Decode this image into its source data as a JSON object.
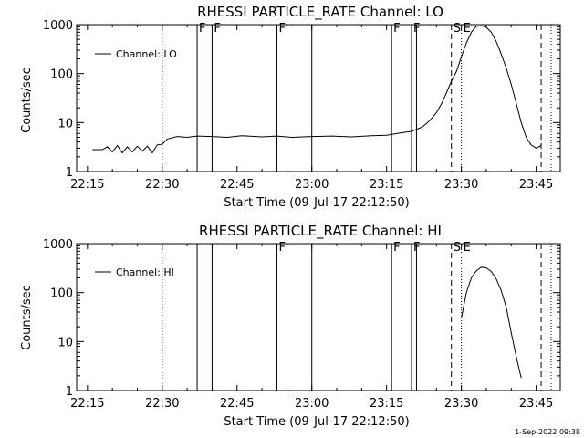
{
  "footer": {
    "timestamp": "1-Sep-2022 09:38"
  },
  "chart_data": [
    {
      "type": "line",
      "title": "RHESSI PARTICLE_RATE Channel: LO",
      "xlabel": "Start Time (09-Jul-17 22:12:50)",
      "ylabel": "Counts/sec",
      "yscale": "log",
      "xlim": [
        "22:12:50",
        "23:49:50"
      ],
      "ylim": [
        1,
        1000
      ],
      "xticks": [
        "22:15",
        "22:30",
        "22:45",
        "23:00",
        "23:15",
        "23:30",
        "23:45"
      ],
      "yticks": [
        "1",
        "10",
        "100",
        "1000"
      ],
      "legend": {
        "position": "top-left",
        "label": "Channel: LO"
      },
      "markers": [
        {
          "time": "22:30",
          "style": "dotted",
          "label": ""
        },
        {
          "time": "22:37",
          "style": "solid",
          "label": "F"
        },
        {
          "time": "22:40",
          "style": "solid",
          "label": "F"
        },
        {
          "time": "22:53",
          "style": "solid",
          "label": "F"
        },
        {
          "time": "23:00",
          "style": "solid",
          "label": ""
        },
        {
          "time": "23:16",
          "style": "solid",
          "label": "F"
        },
        {
          "time": "23:20",
          "style": "solid",
          "label": "F"
        },
        {
          "time": "23:21",
          "style": "solid",
          "label": ""
        },
        {
          "time": "23:28",
          "style": "dashed",
          "label": "S"
        },
        {
          "time": "23:30",
          "style": "dotted",
          "label": "E"
        },
        {
          "time": "23:46",
          "style": "dashed",
          "label": ""
        },
        {
          "time": "23:48",
          "style": "dotted",
          "label": ""
        }
      ],
      "series": [
        {
          "name": "Channel: LO",
          "x": [
            "22:16",
            "22:18",
            "22:19",
            "22:20",
            "22:21",
            "22:22",
            "22:23",
            "22:24",
            "22:25",
            "22:26",
            "22:27",
            "22:28",
            "22:29",
            "22:30",
            "22:31",
            "22:33",
            "22:35",
            "22:37",
            "22:40",
            "22:43",
            "22:46",
            "22:50",
            "22:53",
            "22:56",
            "23:00",
            "23:04",
            "23:08",
            "23:12",
            "23:15",
            "23:18",
            "23:20",
            "23:22",
            "23:23",
            "23:24",
            "23:25",
            "23:26",
            "23:27",
            "23:28",
            "23:29",
            "23:30",
            "23:31",
            "23:32",
            "23:33",
            "23:34",
            "23:35",
            "23:36",
            "23:37",
            "23:38",
            "23:39",
            "23:40",
            "23:41",
            "23:42",
            "23:43",
            "23:44",
            "23:45",
            "23:46"
          ],
          "y": [
            2.8,
            2.8,
            3.2,
            2.5,
            3.4,
            2.4,
            3.2,
            2.5,
            3.3,
            2.6,
            3.3,
            2.4,
            3.5,
            3.6,
            4.6,
            5.2,
            5.0,
            5.3,
            5.2,
            5.0,
            5.4,
            5.1,
            5.3,
            5.0,
            5.2,
            5.3,
            5.1,
            5.4,
            5.5,
            6.2,
            6.6,
            8.0,
            9.5,
            12,
            16,
            24,
            40,
            70,
            110,
            220,
            420,
            700,
            920,
            950,
            880,
            700,
            450,
            250,
            130,
            60,
            25,
            10,
            5,
            3.5,
            3.0,
            3.4
          ]
        }
      ]
    },
    {
      "type": "line",
      "title": "RHESSI PARTICLE_RATE Channel: HI",
      "xlabel": "Start Time (09-Jul-17 22:12:50)",
      "ylabel": "Counts/sec",
      "yscale": "log",
      "xlim": [
        "22:12:50",
        "23:49:50"
      ],
      "ylim": [
        1,
        1000
      ],
      "xticks": [
        "22:15",
        "22:30",
        "22:45",
        "23:00",
        "23:15",
        "23:30",
        "23:45"
      ],
      "yticks": [
        "1",
        "10",
        "100",
        "1000"
      ],
      "legend": {
        "position": "top-left",
        "label": "Channel: HI"
      },
      "markers": [
        {
          "time": "22:30",
          "style": "dotted",
          "label": ""
        },
        {
          "time": "22:37",
          "style": "solid",
          "label": ""
        },
        {
          "time": "22:40",
          "style": "solid",
          "label": ""
        },
        {
          "time": "22:53",
          "style": "solid",
          "label": "F"
        },
        {
          "time": "23:00",
          "style": "solid",
          "label": ""
        },
        {
          "time": "23:16",
          "style": "solid",
          "label": "F"
        },
        {
          "time": "23:20",
          "style": "solid",
          "label": "F"
        },
        {
          "time": "23:21",
          "style": "solid",
          "label": ""
        },
        {
          "time": "23:28",
          "style": "dashed",
          "label": "S"
        },
        {
          "time": "23:30",
          "style": "dotted",
          "label": "E"
        },
        {
          "time": "23:46",
          "style": "dashed",
          "label": ""
        },
        {
          "time": "23:48",
          "style": "dotted",
          "label": ""
        }
      ],
      "series": [
        {
          "name": "Channel: HI",
          "x": [
            "23:30",
            "23:31",
            "23:32",
            "23:33",
            "23:34",
            "23:35",
            "23:36",
            "23:37",
            "23:38",
            "23:39",
            "23:40",
            "23:41",
            "23:42"
          ],
          "y": [
            30,
            100,
            200,
            280,
            330,
            320,
            270,
            190,
            110,
            50,
            15,
            5,
            1.8
          ]
        }
      ]
    }
  ]
}
